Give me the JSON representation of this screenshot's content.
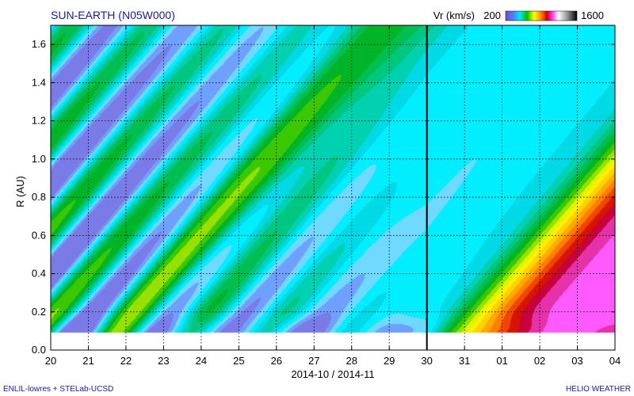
{
  "chart_data": {
    "type": "heatmap",
    "title": "SUN-EARTH (N05W000)",
    "colorbar": {
      "label": "Vr (km/s)",
      "min_label": "200",
      "max_label": "1600",
      "range": [
        200,
        1600
      ]
    },
    "xlabel": "2014-10 / 2014-11",
    "ylabel": "R (AU)",
    "x_ticks": [
      "20",
      "21",
      "22",
      "23",
      "24",
      "25",
      "26",
      "27",
      "28",
      "29",
      "30",
      "31",
      "01",
      "02",
      "03",
      "04"
    ],
    "y_ticks": [
      "0.0",
      "0.2",
      "0.4",
      "0.6",
      "0.8",
      "1.0",
      "1.2",
      "1.4",
      "1.6"
    ],
    "ylim": [
      0.0,
      1.7
    ],
    "grid": true,
    "marker_line_x": "30",
    "data_region_min_r": 0.09,
    "features": [
      {
        "kind": "slow-wind bands",
        "speed_kms": [
          300,
          450
        ]
      },
      {
        "kind": "fast stream arrival",
        "start": "2014-10-31",
        "peak_speed_kms": 900
      }
    ]
  },
  "footer": {
    "left": "ENLIL-lowres + STELab-UCSD",
    "right": "HELIO WEATHER"
  },
  "colors": {
    "title": "#1a1a99",
    "marker_line": "#000000"
  }
}
